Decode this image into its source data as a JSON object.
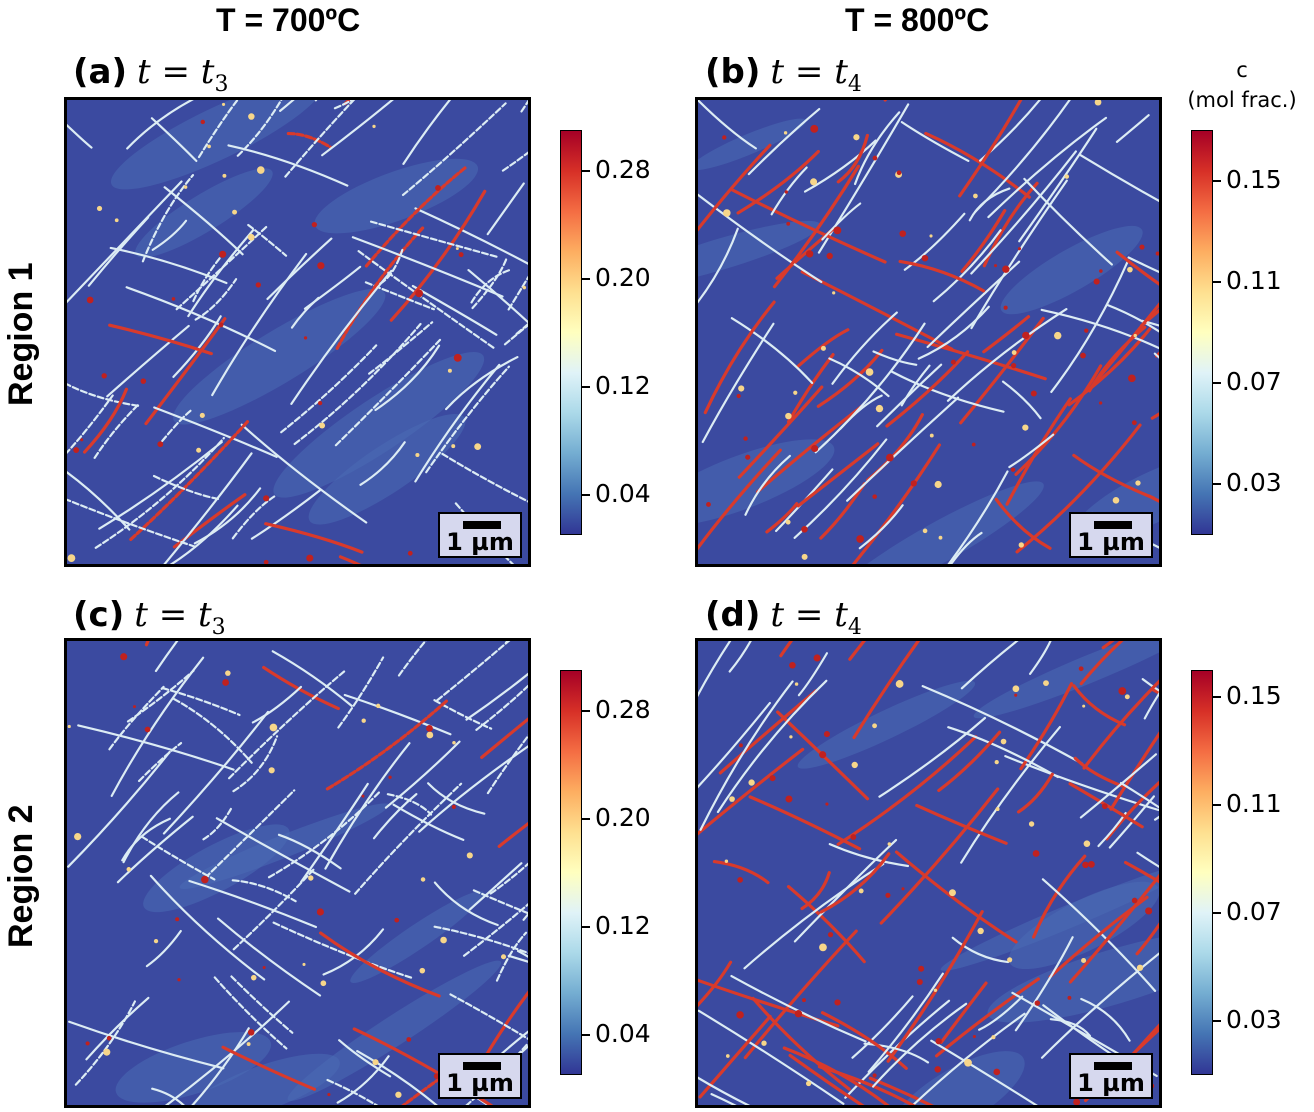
{
  "columns": [
    {
      "header": "T = 700ºC"
    },
    {
      "header": "T = 800ºC"
    }
  ],
  "rows": [
    {
      "header": "Region 1"
    },
    {
      "header": "Region 2"
    }
  ],
  "panels": [
    {
      "label": "(a)",
      "time": "t = t",
      "time_sub": "3",
      "scalebar": "1 µm"
    },
    {
      "label": "(b)",
      "time": "t = t",
      "time_sub": "4",
      "scalebar": "1 µm"
    },
    {
      "label": "(c)",
      "time": "t = t",
      "time_sub": "3",
      "scalebar": "1 µm"
    },
    {
      "label": "(d)",
      "time": "t = t",
      "time_sub": "4",
      "scalebar": "1 µm"
    }
  ],
  "colorbar_title": {
    "line1": "c",
    "line2": "(mol frac.)"
  },
  "chart_data": [
    {
      "type": "heatmap",
      "panel": "(a)",
      "colorscale": "RdYlBu_r",
      "colorbar": {
        "ticks": [
          "0.04",
          "0.12",
          "0.20",
          "0.28"
        ],
        "range": [
          0.01,
          0.31
        ]
      }
    },
    {
      "type": "heatmap",
      "panel": "(b)",
      "colorscale": "RdYlBu_r",
      "colorbar": {
        "ticks": [
          "0.03",
          "0.07",
          "0.11",
          "0.15"
        ],
        "range": [
          0.01,
          0.17
        ]
      }
    },
    {
      "type": "heatmap",
      "panel": "(c)",
      "colorscale": "RdYlBu_r",
      "colorbar": {
        "ticks": [
          "0.04",
          "0.12",
          "0.20",
          "0.28"
        ],
        "range": [
          0.01,
          0.31
        ]
      }
    },
    {
      "type": "heatmap",
      "panel": "(d)",
      "colorscale": "RdYlBu_r",
      "colorbar": {
        "ticks": [
          "0.03",
          "0.07",
          "0.11",
          "0.15"
        ],
        "range": [
          0.01,
          0.16
        ]
      }
    }
  ],
  "colors": {
    "matrix": "#3b4aa0",
    "matrix_light": "#4a6cb5",
    "interface_light": "#dcecf4",
    "interface_mid": "#f7d68a",
    "hot": "#d93a2b",
    "hot_dark": "#c0211f"
  }
}
